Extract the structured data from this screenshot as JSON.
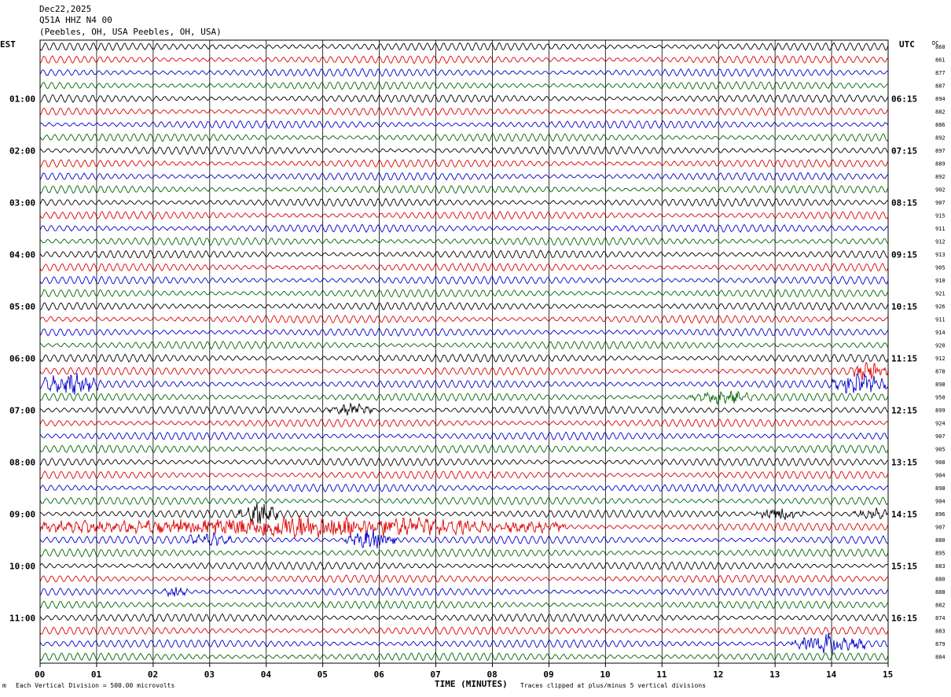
{
  "header": {
    "date": "Dec22,2025",
    "station": "Q51A HHZ N4 00",
    "location": "(Peebles, OH, USA Peebles, OH, USA)"
  },
  "axis": {
    "left_label": "EST",
    "right_label": "UTC",
    "dc_label": "DC",
    "x_title": "TIME (MINUTES)"
  },
  "footer": {
    "scale": "Each Vertical Division =  500.00 microvolts",
    "clip": "Traces clipped at plus/minus 5 vertical divisions",
    "mark": "m"
  },
  "colors": {
    "trace_cycle": [
      "#000000",
      "#dd0000",
      "#0000cc",
      "#006600"
    ]
  },
  "chart_data": {
    "type": "line",
    "title": "Q51A HHZ N4 00",
    "xlabel": "TIME (MINUTES)",
    "xlim": [
      0,
      15
    ],
    "x_ticks": [
      "00",
      "01",
      "02",
      "03",
      "04",
      "05",
      "06",
      "07",
      "08",
      "09",
      "10",
      "11",
      "12",
      "13",
      "14",
      "15"
    ],
    "est_hour_labels": [
      "01:00",
      "02:00",
      "03:00",
      "04:00",
      "05:00",
      "06:00",
      "07:00",
      "08:00",
      "09:00",
      "10:00",
      "11:00"
    ],
    "utc_hour_labels": [
      "06:15",
      "07:15",
      "08:15",
      "09:15",
      "10:15",
      "11:15",
      "12:15",
      "13:15",
      "14:15",
      "15:15",
      "16:15"
    ],
    "row_dc_values": [
      860,
      861,
      877,
      887,
      894,
      882,
      886,
      892,
      897,
      889,
      892,
      902,
      907,
      915,
      911,
      912,
      913,
      905,
      910,
      921,
      926,
      911,
      914,
      920,
      912,
      878,
      898,
      950,
      899,
      924,
      907,
      905,
      908,
      904,
      898,
      904,
      896,
      907,
      880,
      895,
      883,
      880,
      888,
      882,
      874,
      883,
      879,
      884
    ],
    "events": [
      {
        "row": 25,
        "start_min": 14.3,
        "end_min": 15.0,
        "amplitude": "large"
      },
      {
        "row": 26,
        "start_min": 0.0,
        "end_min": 1.1,
        "amplitude": "large"
      },
      {
        "row": 26,
        "start_min": 14.0,
        "end_min": 15.0,
        "amplitude": "large"
      },
      {
        "row": 27,
        "start_min": 11.5,
        "end_min": 12.6,
        "amplitude": "medium"
      },
      {
        "row": 28,
        "start_min": 5.1,
        "end_min": 5.9,
        "amplitude": "medium"
      },
      {
        "row": 36,
        "start_min": 3.5,
        "end_min": 4.2,
        "amplitude": "large"
      },
      {
        "row": 36,
        "start_min": 12.6,
        "end_min": 13.5,
        "amplitude": "medium"
      },
      {
        "row": 36,
        "start_min": 14.4,
        "end_min": 15.0,
        "amplitude": "medium"
      },
      {
        "row": 37,
        "start_min": 0.0,
        "end_min": 9.3,
        "amplitude": "large"
      },
      {
        "row": 38,
        "start_min": 2.6,
        "end_min": 3.4,
        "amplitude": "medium"
      },
      {
        "row": 38,
        "start_min": 5.4,
        "end_min": 6.3,
        "amplitude": "large"
      },
      {
        "row": 42,
        "start_min": 2.2,
        "end_min": 2.6,
        "amplitude": "medium"
      },
      {
        "row": 46,
        "start_min": 13.3,
        "end_min": 14.6,
        "amplitude": "large"
      }
    ]
  }
}
